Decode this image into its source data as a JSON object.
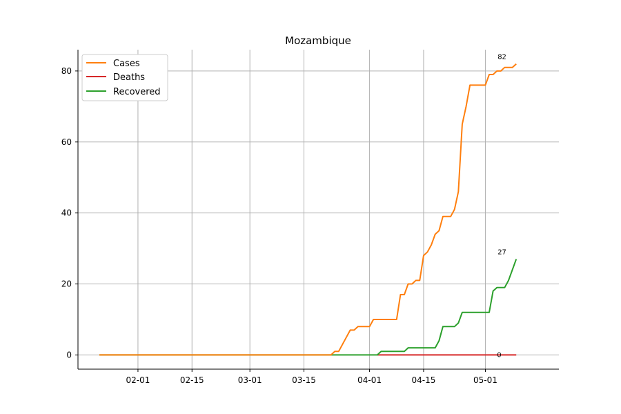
{
  "chart_data": {
    "type": "line",
    "title": "Mozambique",
    "xlabel": "",
    "ylabel": "",
    "x_range": [
      "2020-01-22",
      "2020-05-07"
    ],
    "ylim": [
      -4,
      86
    ],
    "x_ticks": [
      "2020-02-01",
      "2020-02-15",
      "2020-03-01",
      "2020-03-15",
      "2020-04-01",
      "2020-04-15",
      "2020-05-01"
    ],
    "x_tick_labels": [
      "02-01",
      "02-15",
      "03-01",
      "03-15",
      "04-01",
      "04-15",
      "05-01"
    ],
    "y_ticks": [
      0,
      20,
      40,
      60,
      80
    ],
    "y_tick_labels": [
      "0",
      "20",
      "40",
      "60",
      "80"
    ],
    "grid": true,
    "legend_position": "top-left",
    "series": [
      {
        "name": "Cases",
        "color": "#ff7f0e",
        "end_label": "82",
        "points": [
          [
            "2020-01-22",
            0
          ],
          [
            "2020-03-22",
            0
          ],
          [
            "2020-03-23",
            1
          ],
          [
            "2020-03-24",
            1
          ],
          [
            "2020-03-26",
            5
          ],
          [
            "2020-03-27",
            7
          ],
          [
            "2020-03-28",
            7
          ],
          [
            "2020-03-29",
            8
          ],
          [
            "2020-04-01",
            8
          ],
          [
            "2020-04-02",
            10
          ],
          [
            "2020-04-08",
            10
          ],
          [
            "2020-04-09",
            17
          ],
          [
            "2020-04-10",
            17
          ],
          [
            "2020-04-11",
            20
          ],
          [
            "2020-04-12",
            20
          ],
          [
            "2020-04-13",
            21
          ],
          [
            "2020-04-14",
            21
          ],
          [
            "2020-04-15",
            28
          ],
          [
            "2020-04-16",
            29
          ],
          [
            "2020-04-17",
            31
          ],
          [
            "2020-04-18",
            34
          ],
          [
            "2020-04-19",
            35
          ],
          [
            "2020-04-20",
            39
          ],
          [
            "2020-04-22",
            39
          ],
          [
            "2020-04-23",
            41
          ],
          [
            "2020-04-24",
            46
          ],
          [
            "2020-04-25",
            65
          ],
          [
            "2020-04-26",
            70
          ],
          [
            "2020-04-27",
            76
          ],
          [
            "2020-05-01",
            76
          ],
          [
            "2020-05-02",
            79
          ],
          [
            "2020-05-03",
            79
          ],
          [
            "2020-05-04",
            80
          ],
          [
            "2020-05-05",
            80
          ],
          [
            "2020-05-06",
            81
          ],
          [
            "2020-05-08",
            81
          ],
          [
            "2020-05-09",
            82
          ]
        ]
      },
      {
        "name": "Deaths",
        "color": "#d62728",
        "end_label": "0",
        "points": [
          [
            "2020-04-03",
            0
          ],
          [
            "2020-05-09",
            0
          ]
        ]
      },
      {
        "name": "Recovered",
        "color": "#2ca02c",
        "end_label": "27",
        "points": [
          [
            "2020-01-22",
            0
          ],
          [
            "2020-04-03",
            0
          ],
          [
            "2020-04-04",
            1
          ],
          [
            "2020-04-09",
            1
          ],
          [
            "2020-04-10",
            1
          ],
          [
            "2020-04-11",
            2
          ],
          [
            "2020-04-18",
            2
          ],
          [
            "2020-04-19",
            4
          ],
          [
            "2020-04-20",
            8
          ],
          [
            "2020-04-23",
            8
          ],
          [
            "2020-04-24",
            9
          ],
          [
            "2020-04-25",
            12
          ],
          [
            "2020-05-02",
            12
          ],
          [
            "2020-05-03",
            18
          ],
          [
            "2020-05-04",
            19
          ],
          [
            "2020-05-06",
            19
          ],
          [
            "2020-05-07",
            21
          ],
          [
            "2020-05-09",
            27
          ]
        ]
      }
    ]
  }
}
